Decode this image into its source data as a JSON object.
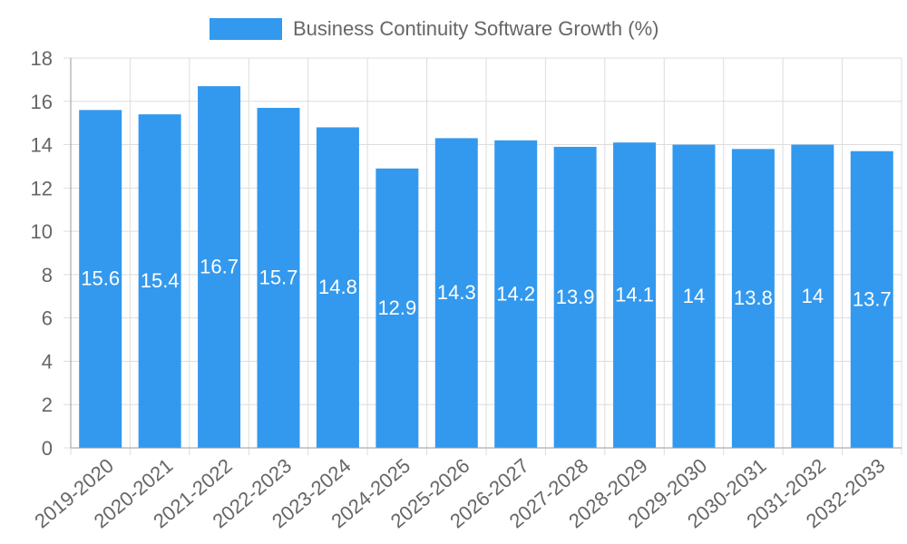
{
  "chart_data": {
    "type": "bar",
    "title": "",
    "legend": [
      {
        "label": "Business Continuity Software Growth (%)",
        "color": "#3399ee"
      }
    ],
    "legend_position": "top",
    "categories": [
      "2019-2020",
      "2020-2021",
      "2021-2022",
      "2022-2023",
      "2023-2024",
      "2024-2025",
      "2025-2026",
      "2026-2027",
      "2027-2028",
      "2028-2029",
      "2029-2030",
      "2030-2031",
      "2031-2032",
      "2032-2033"
    ],
    "series": [
      {
        "name": "Business Continuity Software Growth (%)",
        "values": [
          15.6,
          15.4,
          16.7,
          15.7,
          14.8,
          12.9,
          14.3,
          14.2,
          13.9,
          14.1,
          14,
          13.8,
          14,
          13.7
        ],
        "color": "#3399ee"
      }
    ],
    "data_labels": [
      "15.6",
      "15.4",
      "16.7",
      "15.7",
      "14.8",
      "12.9",
      "14.3",
      "14.2",
      "13.9",
      "14.1",
      "14",
      "13.8",
      "14",
      "13.7"
    ],
    "y_ticks": [
      "0",
      "2",
      "4",
      "6",
      "8",
      "10",
      "12",
      "14",
      "16",
      "18"
    ],
    "ylim": [
      0,
      18
    ],
    "xlabel": "",
    "ylabel": "",
    "grid": true,
    "colors": {
      "grid": "#dddddd",
      "axis": "#999999",
      "tick_text": "#666666",
      "data_label": "#ffffff"
    }
  }
}
